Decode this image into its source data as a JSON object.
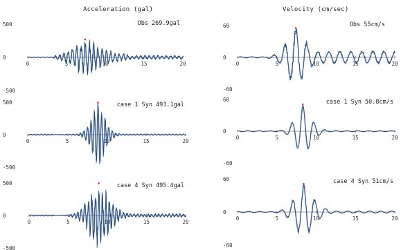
{
  "titles": {
    "acceleration": "Acceleration (gal)",
    "velocity": "Velocity (cm/sec)"
  },
  "colors": {
    "axis": "#7a7a7a",
    "trace_black": "#2a2a2a",
    "trace_blue": "#3a78c8",
    "peak_red": "#d03a2a"
  },
  "chart_data": [
    {
      "type": "line",
      "quantity": "acceleration",
      "xlim": [
        0,
        20
      ],
      "ylim": [
        -500,
        500
      ],
      "yticks": [
        "500",
        "0",
        "-500"
      ],
      "xticks": [
        "0",
        "5",
        "10",
        "15",
        "20"
      ],
      "label": "Obs 269.9gal",
      "peak": 269.9,
      "peak_time": 7.4,
      "decay": 0.28,
      "envelope_end": 20,
      "tail_level": 0.12,
      "noise": 0.22,
      "period": 0.55,
      "series": [
        {
          "name": "Obs",
          "x_start": 0,
          "x_end": 20
        }
      ]
    },
    {
      "type": "line",
      "quantity": "velocity",
      "xlim": [
        0,
        20
      ],
      "ylim": [
        -60,
        60
      ],
      "yticks": [
        "60",
        "0",
        "-60"
      ],
      "xticks": [
        "0",
        "5",
        "10",
        "15",
        "20"
      ],
      "label": "Obs 55cm/s",
      "peak": 55,
      "peak_time": 7.4,
      "decay": 0.55,
      "envelope_end": 20,
      "tail_level": 0.2,
      "noise": 0.08,
      "period": 1.4,
      "series": [
        {
          "name": "Obs",
          "x_start": 0,
          "x_end": 20
        }
      ]
    },
    {
      "type": "line",
      "quantity": "acceleration",
      "xlim": [
        0,
        20
      ],
      "ylim": [
        -500,
        500
      ],
      "yticks": [
        "500",
        "0",
        "-500"
      ],
      "xticks": [
        "0",
        "5",
        "10",
        "15",
        "20"
      ],
      "label": "case 1 Syn 493.1gal",
      "peak": 493.1,
      "peak_time": 8.9,
      "decay": 0.9,
      "envelope_end": 20,
      "tail_level": 0.02,
      "noise": 0.1,
      "period": 0.45,
      "series": [
        {
          "name": "case 1 Syn",
          "x_start": 0,
          "x_end": 20
        }
      ]
    },
    {
      "type": "line",
      "quantity": "velocity",
      "xlim": [
        0,
        20
      ],
      "ylim": [
        -60,
        60
      ],
      "yticks": [
        "60",
        "0",
        "-60"
      ],
      "xticks": [
        "0",
        "5",
        "10",
        "15",
        "20"
      ],
      "label": "case 1 Syn 50.8cm/s",
      "peak": 50.8,
      "peak_time": 8.3,
      "decay": 0.75,
      "envelope_end": 20,
      "tail_level": 0.02,
      "noise": 0.02,
      "period": 1.4,
      "series": [
        {
          "name": "case 1 Syn",
          "x_start": 0,
          "x_end": 20
        }
      ]
    },
    {
      "type": "line",
      "quantity": "acceleration",
      "xlim": [
        0,
        20
      ],
      "ylim": [
        -500,
        500
      ],
      "yticks": [
        "500",
        "0",
        "-500"
      ],
      "xticks": [
        "0",
        "5",
        "10",
        "15",
        "20"
      ],
      "label": "case 4 Syn 495.4gal",
      "peak": 495.4,
      "peak_time": 8.9,
      "decay": 0.55,
      "envelope_end": 20,
      "tail_level": 0.05,
      "noise": 0.22,
      "period": 0.45,
      "series": [
        {
          "name": "case 4 Syn",
          "x_start": 0,
          "x_end": 20
        }
      ]
    },
    {
      "type": "line",
      "quantity": "velocity",
      "xlim": [
        0,
        20
      ],
      "ylim": [
        -60,
        60
      ],
      "yticks": [
        "60",
        "0",
        "-60"
      ],
      "xticks": [
        "0",
        "5",
        "10",
        "15",
        "20"
      ],
      "label": "case 4 Syn 51cm/s",
      "peak": 51,
      "peak_time": 8.4,
      "decay": 0.6,
      "envelope_end": 20,
      "tail_level": 0.04,
      "noise": 0.05,
      "period": 1.4,
      "series": [
        {
          "name": "case 4 Syn",
          "x_start": 0,
          "x_end": 20
        }
      ]
    }
  ]
}
